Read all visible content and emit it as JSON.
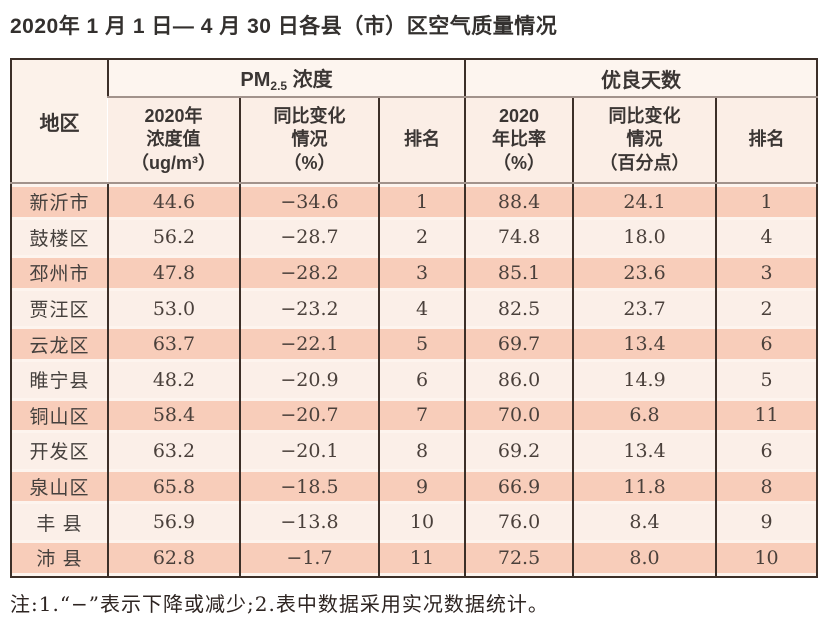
{
  "title": "2020年 1 月 1 日— 4 月 30 日各县（市）区空气质量情况",
  "table": {
    "region_header": "地区",
    "pm_group": {
      "prefix": "PM",
      "sub": "2.5",
      "suffix": " 浓度"
    },
    "good_group": "优良天数",
    "sub_headers": {
      "pm_value": "2020年\n浓度值\n（ug/m³）",
      "pm_change": "同比变化\n情况\n（%）",
      "pm_rank": "排名",
      "good_ratio": "2020\n年比率\n（%）",
      "good_change": "同比变化\n情况\n（百分点）",
      "good_rank": "排名"
    },
    "rows": [
      {
        "region": "新沂市",
        "pm_value": "44.6",
        "pm_change": "−34.6",
        "pm_rank": "1",
        "good_ratio": "88.4",
        "good_change": "24.1",
        "good_rank": "1"
      },
      {
        "region": "鼓楼区",
        "pm_value": "56.2",
        "pm_change": "−28.7",
        "pm_rank": "2",
        "good_ratio": "74.8",
        "good_change": "18.0",
        "good_rank": "4"
      },
      {
        "region": "邳州市",
        "pm_value": "47.8",
        "pm_change": "−28.2",
        "pm_rank": "3",
        "good_ratio": "85.1",
        "good_change": "23.6",
        "good_rank": "3"
      },
      {
        "region": "贾汪区",
        "pm_value": "53.0",
        "pm_change": "−23.2",
        "pm_rank": "4",
        "good_ratio": "82.5",
        "good_change": "23.7",
        "good_rank": "2"
      },
      {
        "region": "云龙区",
        "pm_value": "63.7",
        "pm_change": "−22.1",
        "pm_rank": "5",
        "good_ratio": "69.7",
        "good_change": "13.4",
        "good_rank": "6"
      },
      {
        "region": "睢宁县",
        "pm_value": "48.2",
        "pm_change": "−20.9",
        "pm_rank": "6",
        "good_ratio": "86.0",
        "good_change": "14.9",
        "good_rank": "5"
      },
      {
        "region": "铜山区",
        "pm_value": "58.4",
        "pm_change": "−20.7",
        "pm_rank": "7",
        "good_ratio": "70.0",
        "good_change": "6.8",
        "good_rank": "11"
      },
      {
        "region": "开发区",
        "pm_value": "63.2",
        "pm_change": "−20.1",
        "pm_rank": "8",
        "good_ratio": "69.2",
        "good_change": "13.4",
        "good_rank": "6"
      },
      {
        "region": "泉山区",
        "pm_value": "65.8",
        "pm_change": "−18.5",
        "pm_rank": "9",
        "good_ratio": "66.9",
        "good_change": "11.8",
        "good_rank": "8"
      },
      {
        "region": "丰 县",
        "pm_value": "56.9",
        "pm_change": "−13.8",
        "pm_rank": "10",
        "good_ratio": "76.0",
        "good_change": "8.4",
        "good_rank": "9"
      },
      {
        "region": "沛 县",
        "pm_value": "62.8",
        "pm_change": "−1.7",
        "pm_rank": "11",
        "good_ratio": "72.5",
        "good_change": "8.0",
        "good_rank": "10"
      }
    ]
  },
  "note": "注:1.“−”表示下降或减少;2.表中数据采用实况数据统计。"
}
